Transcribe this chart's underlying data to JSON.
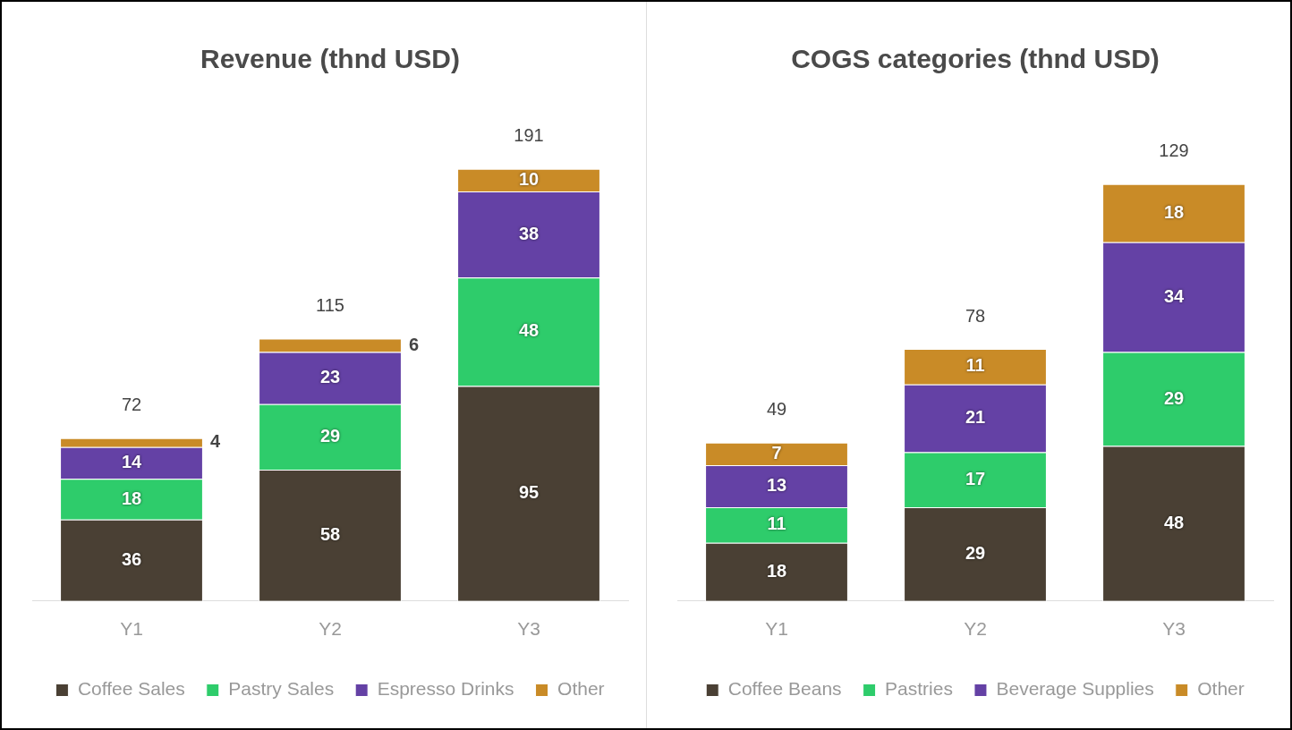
{
  "chart_data": [
    {
      "type": "bar",
      "title": "Revenue (thnd USD)",
      "categories": [
        "Y1",
        "Y2",
        "Y3"
      ],
      "stacked": true,
      "data_labels": true,
      "legend": "bottom",
      "grid": false,
      "totals": [
        "72",
        "115",
        "191"
      ],
      "series": [
        {
          "name": "Coffee Sales",
          "color": "#4a4034",
          "values": [
            36,
            58,
            95
          ]
        },
        {
          "name": "Pastry Sales",
          "color": "#2ecc6b",
          "values": [
            18,
            29,
            48
          ]
        },
        {
          "name": "Espresso Drinks",
          "color": "#6441a5",
          "values": [
            14,
            23,
            38
          ]
        },
        {
          "name": "Other",
          "color": "#c98b27",
          "values": [
            4,
            6,
            10
          ]
        }
      ]
    },
    {
      "type": "bar",
      "title": "COGS categories (thnd USD)",
      "categories": [
        "Y1",
        "Y2",
        "Y3"
      ],
      "stacked": true,
      "data_labels": true,
      "legend": "bottom",
      "grid": false,
      "totals": [
        "49",
        "78",
        "129"
      ],
      "series": [
        {
          "name": "Coffee Beans",
          "color": "#4a4034",
          "values": [
            18,
            29,
            48
          ]
        },
        {
          "name": "Pastries",
          "color": "#2ecc6b",
          "values": [
            11,
            17,
            29
          ]
        },
        {
          "name": "Beverage Supplies",
          "color": "#6441a5",
          "values": [
            13,
            21,
            34
          ]
        },
        {
          "name": "Other",
          "color": "#c98b27",
          "values": [
            7,
            11,
            18
          ]
        }
      ]
    }
  ]
}
